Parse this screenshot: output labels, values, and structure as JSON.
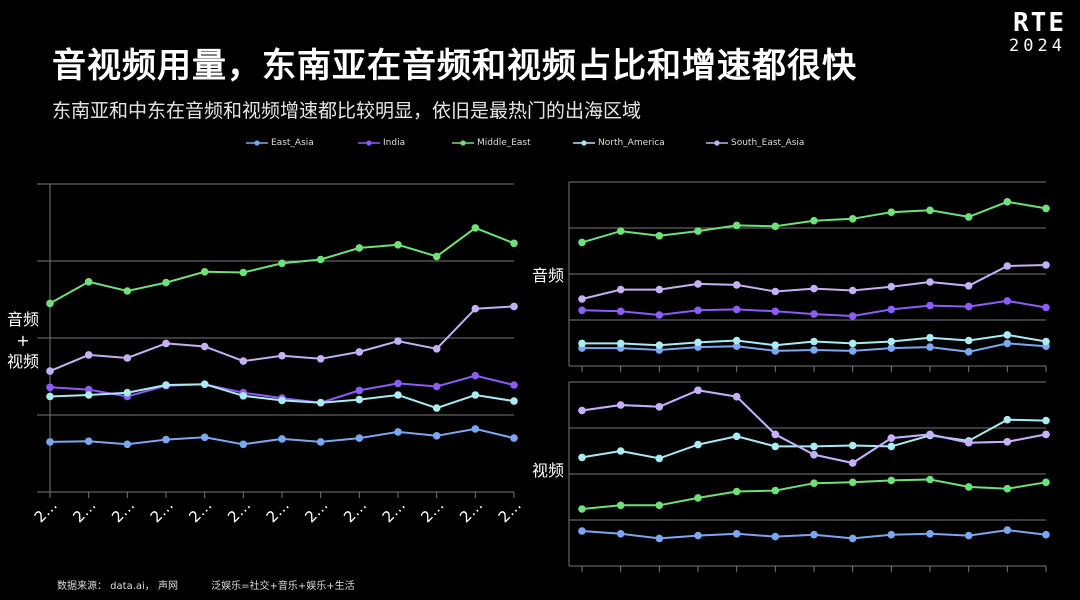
{
  "title": "音视频用量，东南亚在音频和视频占比和增速都很快",
  "subtitle": "东南亚和中东在音频和视频增速都比较明显，依旧是最热门的出海区域",
  "logo": {
    "line1": "RTE",
    "line2": "2024"
  },
  "footer": {
    "source": "数据来源： data.ai， 声网",
    "note": "泛娱乐=社交+音乐+娱乐+生活"
  },
  "colors": {
    "East_Asia": "#7aa7f0",
    "India": "#8b5cf6",
    "Middle_East": "#6fe07a",
    "North_America": "#a8ecf2",
    "South_East_Asia": "#c4b0f5"
  },
  "chart_data": [
    {
      "type": "line",
      "panel": "left",
      "ylabel": "音频\n+\n视频",
      "xtick_label": "2…",
      "n_points": 13,
      "grid": true,
      "series": [
        {
          "name": "East_Asia",
          "values": [
            0.5,
            0.6,
            0.2,
            0.8,
            1.1,
            0.2,
            0.9,
            0.5,
            1.0,
            1.8,
            1.3,
            2.2,
            1.0
          ]
        },
        {
          "name": "India",
          "values": [
            7.6,
            7.3,
            6.4,
            7.8,
            8.0,
            6.9,
            6.2,
            5.6,
            7.2,
            8.1,
            7.7,
            9.1,
            7.9
          ]
        },
        {
          "name": "Middle_East",
          "values": [
            18.5,
            21.3,
            20.1,
            21.2,
            22.6,
            22.5,
            23.7,
            24.2,
            25.7,
            26.1,
            24.6,
            28.3,
            26.3
          ]
        },
        {
          "name": "North_America",
          "values": [
            6.4,
            6.6,
            6.9,
            7.9,
            8.0,
            6.5,
            5.9,
            5.6,
            6.0,
            6.6,
            4.9,
            6.6,
            5.8
          ]
        },
        {
          "name": "South_East_Asia",
          "values": [
            9.7,
            11.8,
            11.4,
            13.3,
            12.9,
            11.0,
            11.7,
            11.3,
            12.2,
            13.6,
            12.6,
            17.8,
            18.1
          ]
        }
      ]
    },
    {
      "type": "line",
      "panel": "right-top",
      "ylabel": "音频",
      "n_points": 13,
      "grid": true,
      "series": [
        {
          "name": "East_Asia",
          "values": [
            2.4,
            2.4,
            2.2,
            2.5,
            2.6,
            2.1,
            2.2,
            2.1,
            2.4,
            2.5,
            2.0,
            2.9,
            2.6
          ]
        },
        {
          "name": "India",
          "values": [
            6.4,
            6.3,
            5.9,
            6.4,
            6.5,
            6.3,
            6.0,
            5.8,
            6.5,
            6.9,
            6.8,
            7.4,
            6.7
          ]
        },
        {
          "name": "Middle_East",
          "values": [
            13.6,
            14.8,
            14.3,
            14.8,
            15.4,
            15.3,
            15.9,
            16.1,
            16.8,
            17.0,
            16.3,
            17.9,
            17.2
          ]
        },
        {
          "name": "North_America",
          "values": [
            2.9,
            2.9,
            2.7,
            3.0,
            3.2,
            2.7,
            3.1,
            2.9,
            3.1,
            3.5,
            3.2,
            3.8,
            3.1
          ]
        },
        {
          "name": "South_East_Asia",
          "values": [
            7.6,
            8.6,
            8.6,
            9.2,
            9.1,
            8.4,
            8.7,
            8.5,
            8.9,
            9.4,
            9.0,
            11.1,
            11.2
          ]
        }
      ]
    },
    {
      "type": "line",
      "panel": "right-bottom",
      "ylabel": "视频",
      "n_points": 13,
      "grid": true,
      "series": [
        {
          "name": "East_Asia",
          "values": [
            2.8,
            2.5,
            2.0,
            2.3,
            2.5,
            2.2,
            2.4,
            2.0,
            2.4,
            2.5,
            2.3,
            2.9,
            2.4
          ]
        },
        {
          "name": "India",
          "values": [
            15.9,
            16.5,
            16.3,
            18.1,
            17.4,
            13.3,
            11.1,
            10.2,
            12.9,
            13.3,
            12.4,
            12.5,
            13.3
          ]
        },
        {
          "name": "Middle_East",
          "values": [
            5.2,
            5.6,
            5.6,
            6.4,
            7.1,
            7.2,
            8.0,
            8.1,
            8.3,
            8.4,
            7.6,
            7.4,
            8.1
          ]
        },
        {
          "name": "North_America",
          "values": [
            10.8,
            11.5,
            10.7,
            12.2,
            13.1,
            12.0,
            12.0,
            12.1,
            12.0,
            13.2,
            12.6,
            14.9,
            14.8
          ]
        },
        {
          "name": "South_East_Asia",
          "values": [
            15.9,
            16.5,
            16.3,
            18.1,
            17.4,
            13.3,
            11.1,
            10.2,
            12.9,
            13.3,
            12.4,
            12.5,
            13.3
          ]
        }
      ]
    }
  ],
  "legend": [
    {
      "name": "East_Asia",
      "color": "#7aa7f0"
    },
    {
      "name": "India",
      "color": "#8b5cf6"
    },
    {
      "name": "Middle_East",
      "color": "#6fe07a"
    },
    {
      "name": "North_America",
      "color": "#a8ecf2"
    },
    {
      "name": "South_East_Asia",
      "color": "#c4b0f5"
    }
  ]
}
